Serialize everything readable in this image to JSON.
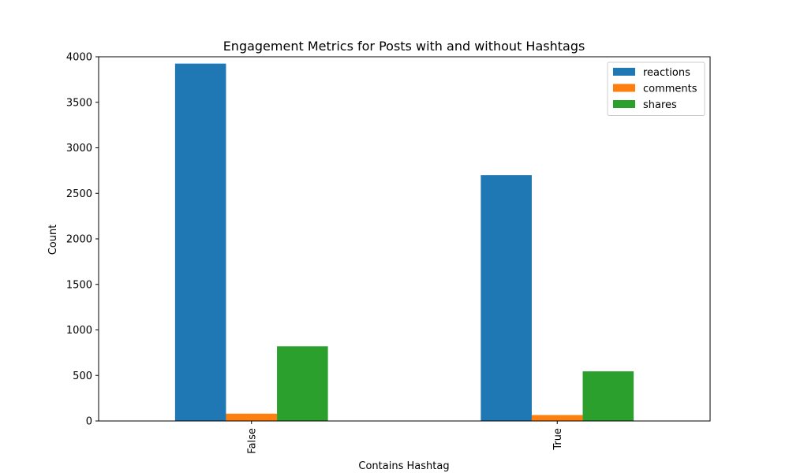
{
  "chart_data": {
    "type": "bar",
    "title": "Engagement Metrics for Posts with and without Hashtags",
    "xlabel": "Contains Hashtag",
    "ylabel": "Count",
    "categories": [
      "False",
      "True"
    ],
    "series": [
      {
        "name": "reactions",
        "values": [
          3925,
          2700
        ],
        "color": "#1f77b4"
      },
      {
        "name": "comments",
        "values": [
          80,
          65
        ],
        "color": "#ff7f0e"
      },
      {
        "name": "shares",
        "values": [
          820,
          545
        ],
        "color": "#2ca02c"
      }
    ],
    "ylim": [
      0,
      4000
    ],
    "yticks": [
      "0",
      "500",
      "1000",
      "1500",
      "2000",
      "2500",
      "3000",
      "3500",
      "4000"
    ],
    "grid": false,
    "legend_position": "top-right"
  }
}
